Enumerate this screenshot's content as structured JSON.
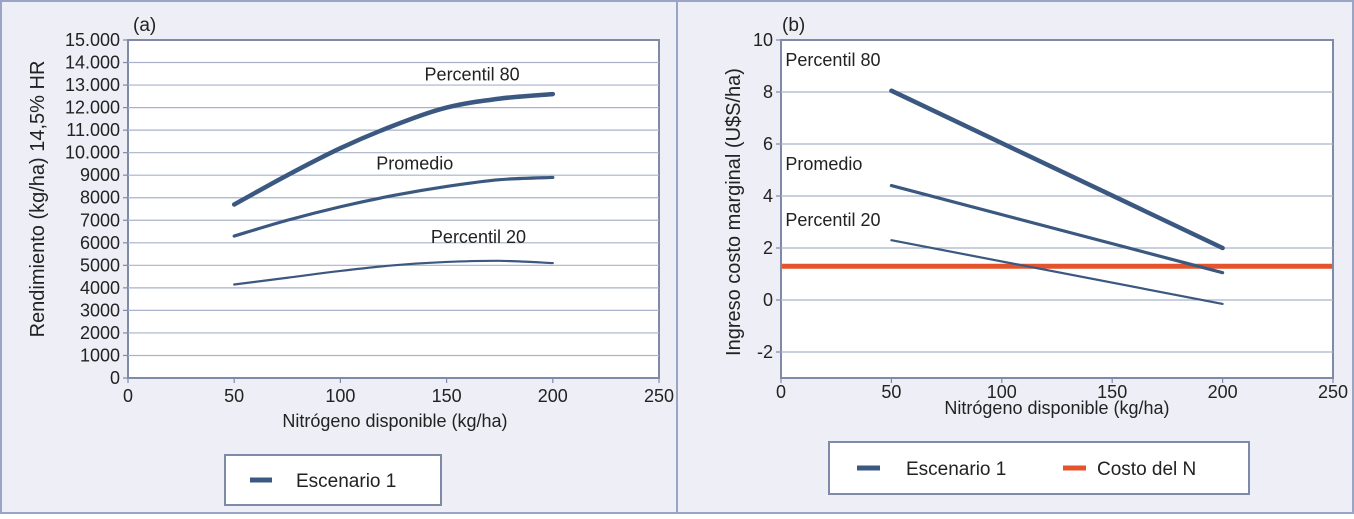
{
  "colors": {
    "background": "#eeeef6",
    "frame": "#9aa4c4",
    "plot_border": "#7f8aa8",
    "grid": "#a9b2c8",
    "series": "#3b5880",
    "cost": "#e5532c",
    "text": "#222222"
  },
  "chart_data": [
    {
      "type": "line",
      "panel_label": "(a)",
      "xlabel": "Nitrógeno disponible (kg/ha)",
      "ylabel": "Rendimiento (kg/ha) 14,5% HR",
      "xlim": [
        0,
        250
      ],
      "ylim": [
        0,
        15000
      ],
      "x_ticks": [
        0,
        50,
        100,
        150,
        200,
        250
      ],
      "x_tick_labels": [
        "0",
        "50",
        "100",
        "150",
        "200",
        "250"
      ],
      "y_ticks": [
        0,
        1000,
        2000,
        3000,
        4000,
        5000,
        6000,
        7000,
        8000,
        9000,
        10000,
        11000,
        12000,
        13000,
        14000,
        15000
      ],
      "y_tick_labels": [
        "0",
        "1000",
        "2000",
        "3000",
        "4000",
        "5000",
        "6000",
        "7000",
        "8000",
        "9000",
        "10.000",
        "11.000",
        "12.000",
        "13.000",
        "14.000",
        "15.000"
      ],
      "grid": "horizontal",
      "series": [
        {
          "label": "Percentil 80",
          "x": [
            50,
            75,
            100,
            125,
            150,
            175,
            200
          ],
          "y": [
            7700,
            9000,
            10200,
            11200,
            12000,
            12400,
            12600
          ],
          "width": 4.5,
          "label_x": 162,
          "label_y": 13200
        },
        {
          "label": "Promedio",
          "x": [
            50,
            75,
            100,
            125,
            150,
            175,
            200
          ],
          "y": [
            6300,
            7000,
            7600,
            8100,
            8500,
            8800,
            8900
          ],
          "width": 3.2,
          "label_x": 135,
          "label_y": 9250
        },
        {
          "label": "Percentil 20",
          "x": [
            50,
            75,
            100,
            125,
            150,
            175,
            200
          ],
          "y": [
            4150,
            4450,
            4750,
            5000,
            5150,
            5200,
            5100
          ],
          "width": 2.2,
          "label_x": 165,
          "label_y": 6000
        }
      ],
      "legend": [
        "Escenario 1"
      ],
      "legend_placement": "bottom"
    },
    {
      "type": "line",
      "panel_label": "(b)",
      "xlabel": "Nitrógeno disponible (kg/ha)",
      "ylabel": "Ingreso costo marginal  (U$S/ha)",
      "xlim": [
        0,
        250
      ],
      "ylim": [
        -3,
        10
      ],
      "x_ticks": [
        0,
        50,
        100,
        150,
        200,
        250
      ],
      "x_tick_labels": [
        "0",
        "50",
        "100",
        "150",
        "200",
        "250"
      ],
      "y_ticks": [
        -2,
        0,
        2,
        4,
        6,
        8,
        10
      ],
      "y_tick_labels": [
        "-2",
        "0",
        "2",
        "4",
        "6",
        "8",
        "10"
      ],
      "grid": "horizontal",
      "series": [
        {
          "label": "Percentil 80",
          "x": [
            50,
            200
          ],
          "y": [
            8.05,
            2.0
          ],
          "width": 4.5,
          "label_x": 2,
          "label_y": 9.0
        },
        {
          "label": "Promedio",
          "x": [
            50,
            200
          ],
          "y": [
            4.4,
            1.05
          ],
          "width": 3.2,
          "label_x": 2,
          "label_y": 5.0
        },
        {
          "label": "Percentil 20",
          "x": [
            50,
            200
          ],
          "y": [
            2.3,
            -0.15
          ],
          "width": 2.2,
          "label_x": 2,
          "label_y": 2.85
        }
      ],
      "cost_line": {
        "name": "Costo del N",
        "y": 1.3
      },
      "legend": [
        "Escenario 1",
        "Costo del N"
      ],
      "legend_placement": "bottom"
    }
  ]
}
